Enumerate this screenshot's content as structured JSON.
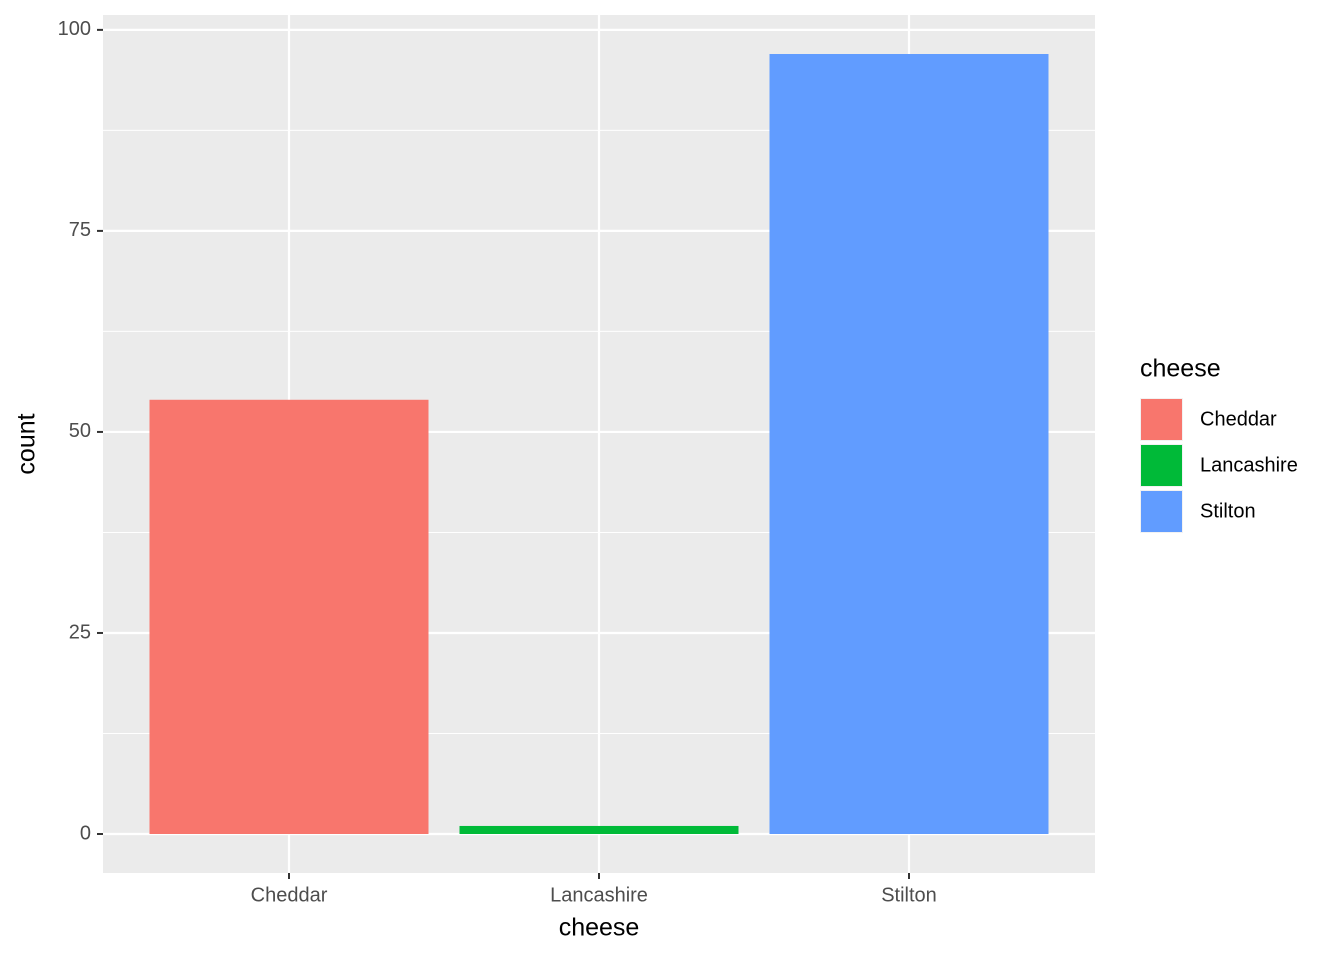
{
  "chart_data": {
    "type": "bar",
    "x_label": "cheese",
    "y_label": "count",
    "categories": [
      "Cheddar",
      "Lancashire",
      "Stilton"
    ],
    "values": [
      54,
      1,
      97
    ],
    "colors": [
      "#f8766d",
      "#00ba38",
      "#619cff"
    ],
    "ylim": [
      -4.85,
      101.85
    ],
    "yticks": [
      0,
      25,
      50,
      75,
      100
    ],
    "grid": true,
    "legend": {
      "title": "cheese",
      "position": "right"
    }
  }
}
